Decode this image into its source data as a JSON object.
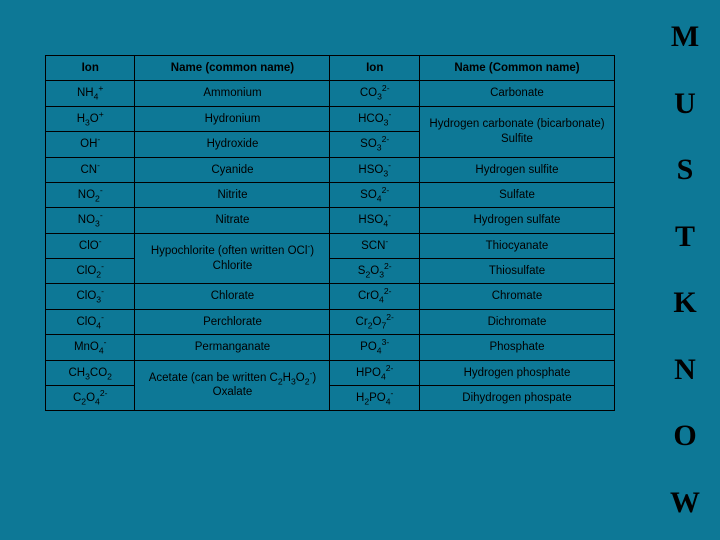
{
  "background_color": "#0d7896",
  "border_color": "#000000",
  "text_color": "#000000",
  "font_family": "Arial, sans-serif",
  "letters_font": "Times New Roman, serif",
  "letters_fontsize": 30,
  "cell_fontsize": 11.5,
  "headers": {
    "ion1": "Ion",
    "name1": "Name (common name)",
    "ion2": "Ion",
    "name2": "Name (Common name)"
  },
  "rows": [
    {
      "ion1": "NH<sub>4</sub><sup>+</sup>",
      "name1": "Ammonium",
      "ion2": "CO<sub>3</sub><sup>2-</sup>",
      "name2": "Carbonate",
      "merge_next_name2": false
    },
    {
      "ion1": "H<sub>3</sub>O<sup>+</sup>",
      "name1": "Hydronium",
      "ion2": "HCO<sub>3</sub><sup>-</sup>",
      "name2": "Hydrogen carbonate (bicarbonate) Sulfite",
      "merge_next_name2": true
    },
    {
      "ion1": "OH<sup>-</sup>",
      "name1": "Hydroxide",
      "ion2": "SO<sub>3</sub><sup>2-</sup>",
      "name2": "",
      "skip_name2": true
    },
    {
      "ion1": "CN<sup>-</sup>",
      "name1": "Cyanide",
      "ion2": "HSO<sub>3</sub><sup>-</sup>",
      "name2": "Hydrogen sulfite"
    },
    {
      "ion1": "NO<sub>2</sub><sup>-</sup>",
      "name1": "Nitrite",
      "ion2": "SO<sub>4</sub><sup>2-</sup>",
      "name2": "Sulfate"
    },
    {
      "ion1": "NO<sub>3</sub><sup>-</sup>",
      "name1": "Nitrate",
      "ion2": "HSO<sub>4</sub><sup>-</sup>",
      "name2": "Hydrogen sulfate"
    },
    {
      "ion1": "ClO<sup>-</sup>",
      "name1": "Hypochlorite (often written OCl<sup>-</sup>) Chlorite",
      "merge_next_name1": true,
      "ion2": "SCN<sup>-</sup>",
      "name2": "Thiocyanate"
    },
    {
      "ion1": "ClO<sub>2</sub><sup>-</sup>",
      "skip_name1": true,
      "ion2": "S<sub>2</sub>O<sub>3</sub><sup>2-</sup>",
      "name2": "Thiosulfate"
    },
    {
      "ion1": "ClO<sub>3</sub><sup>-</sup>",
      "name1": "Chlorate",
      "ion2": "CrO<sub>4</sub><sup>2-</sup>",
      "name2": "Chromate"
    },
    {
      "ion1": "ClO<sub>4</sub><sup>-</sup>",
      "name1": "Perchlorate",
      "ion2": "Cr<sub>2</sub>O<sub>7</sub><sup>2-</sup>",
      "name2": "Dichromate"
    },
    {
      "ion1": "MnO<sub>4</sub><sup>-</sup>",
      "name1": "Permanganate",
      "ion2": "PO<sub>4</sub><sup>3-</sup>",
      "name2": "Phosphate"
    },
    {
      "ion1": "CH<sub>3</sub>CO<sub>2</sub>",
      "name1": "Acetate (can be written C<sub>2</sub>H<sub>3</sub>O<sub>2</sub><sup>-</sup>) Oxalate",
      "merge_next_name1": true,
      "ion2": "HPO<sub>4</sub><sup>2-</sup>",
      "name2": "Hydrogen phosphate"
    },
    {
      "ion1": "C<sub>2</sub>O<sub>4</sub><sup>2-</sup>",
      "skip_name1": true,
      "ion2": "H<sub>2</sub>PO<sub>4</sub><sup>-</sup>",
      "name2": "Dihydrogen phospate"
    }
  ],
  "side_letters": [
    "M",
    "U",
    "S",
    "T",
    "K",
    "N",
    "O",
    "W"
  ]
}
